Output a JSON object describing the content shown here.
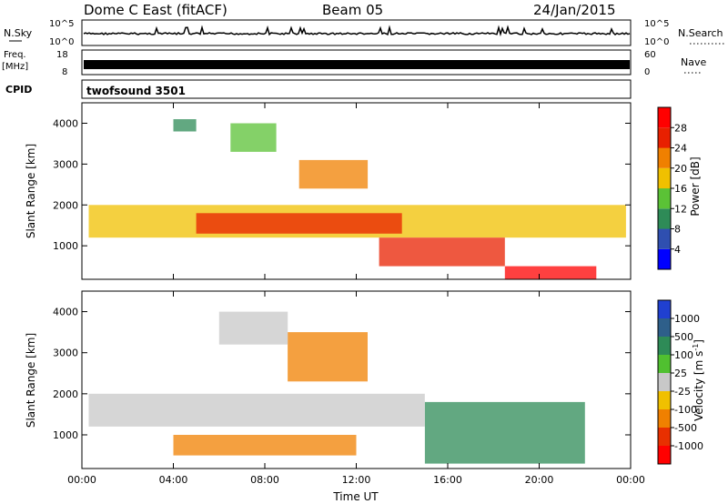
{
  "header": {
    "station": "Dome C East (fitACF)",
    "beam": "Beam 05",
    "date": "24/Jan/2015"
  },
  "top_panels": {
    "nsky_label": "N.Sky",
    "nsky_ticks": [
      "10^5",
      "10^0"
    ],
    "nsearch_label": "N.Search",
    "nsearch_ticks": [
      "10^5",
      "10^0"
    ],
    "freq_label": "Freq.",
    "freq_unit": "[MHz]",
    "freq_ticks": [
      "18",
      "8"
    ],
    "nave_label": "Nave",
    "nave_ticks": [
      "60",
      "0"
    ],
    "cpid_label": "CPID",
    "cpid_value": "twofsound 3501"
  },
  "chart_data": [
    {
      "type": "heatmap",
      "title": "",
      "xlabel": "",
      "ylabel": "Slant Range [km]",
      "xlim": [
        0,
        24
      ],
      "ylim": [
        180,
        4500
      ],
      "x_ticks": [
        "00:00",
        "04:00",
        "08:00",
        "12:00",
        "16:00",
        "20:00",
        "00:00"
      ],
      "y_ticks": [
        1000,
        2000,
        3000,
        4000
      ],
      "colorbar": {
        "label": "Power [dB]",
        "ticks": [
          "4",
          "8",
          "12",
          "16",
          "20",
          "24",
          "28"
        ],
        "colors": [
          "#0000ff",
          "#2f4fb0",
          "#2e8b57",
          "#5bc236",
          "#f0c000",
          "#f08000",
          "#e82000",
          "#ff0000"
        ]
      },
      "regions": [
        {
          "t": [
            0.3,
            23.8
          ],
          "r": [
            1200,
            2000
          ],
          "value": 18
        },
        {
          "t": [
            5.0,
            14.0
          ],
          "r": [
            1300,
            1800
          ],
          "value": 24
        },
        {
          "t": [
            9.5,
            12.5
          ],
          "r": [
            2400,
            3100
          ],
          "value": 22
        },
        {
          "t": [
            13.0,
            18.5
          ],
          "r": [
            500,
            1200
          ],
          "value": 26
        },
        {
          "t": [
            18.5,
            22.5
          ],
          "r": [
            180,
            500
          ],
          "value": 28
        },
        {
          "t": [
            6.5,
            8.5
          ],
          "r": [
            3300,
            4000
          ],
          "value": 12
        },
        {
          "t": [
            4.0,
            5.0
          ],
          "r": [
            3800,
            4100
          ],
          "value": 8
        }
      ]
    },
    {
      "type": "heatmap",
      "title": "",
      "xlabel": "Time UT",
      "ylabel": "Slant Range [km]",
      "xlim": [
        0,
        24
      ],
      "ylim": [
        180,
        4500
      ],
      "x_ticks": [
        "00:00",
        "04:00",
        "08:00",
        "12:00",
        "16:00",
        "20:00",
        "00:00"
      ],
      "y_ticks": [
        1000,
        2000,
        3000,
        4000
      ],
      "colorbar": {
        "label": "Velocity [m s",
        "label_superscript": "-1",
        "ticks": [
          "1000",
          "500",
          "100",
          "25",
          "-25",
          "-100",
          "-500",
          "-1000"
        ],
        "colors": [
          "#2040d0",
          "#2e5f8a",
          "#2e8b57",
          "#50c030",
          "#c8c8c8",
          "#f0c000",
          "#f08000",
          "#e83000",
          "#ff0000"
        ]
      },
      "regions": [
        {
          "t": [
            0.3,
            15.0
          ],
          "r": [
            1200,
            2000
          ],
          "value": 0
        },
        {
          "t": [
            4.0,
            12.0
          ],
          "r": [
            500,
            1000
          ],
          "value": -200
        },
        {
          "t": [
            15.0,
            22.0
          ],
          "r": [
            300,
            1800
          ],
          "value": 150
        },
        {
          "t": [
            9.0,
            12.5
          ],
          "r": [
            2300,
            3500
          ],
          "value": -150
        },
        {
          "t": [
            6.0,
            9.0
          ],
          "r": [
            3200,
            4000
          ],
          "value": 0
        }
      ]
    }
  ]
}
